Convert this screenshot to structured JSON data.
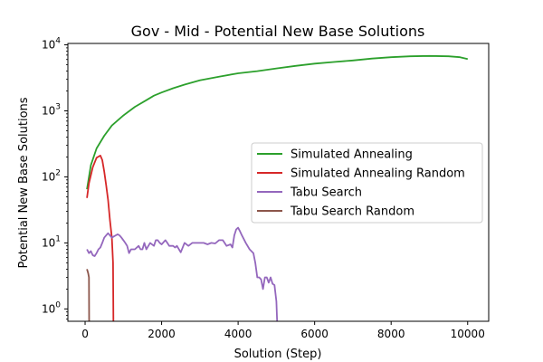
{
  "chart_data": {
    "type": "line",
    "title": "Gov - Mid - Potential New Base Solutions",
    "xlabel": "Solution (Step)",
    "ylabel": "Potential New Base Solutions",
    "xlim": [
      -450,
      10550
    ],
    "ylim": [
      0.65,
      10500
    ],
    "yscale": "log",
    "x_ticks": [
      0,
      2000,
      4000,
      6000,
      8000,
      10000
    ],
    "x_tick_labels": [
      "0",
      "2000",
      "4000",
      "6000",
      "8000",
      "10000"
    ],
    "y_ticks": [
      1,
      10,
      100,
      1000,
      10000
    ],
    "y_tick_labels": [
      [
        "10",
        "0"
      ],
      [
        "10",
        "1"
      ],
      [
        "10",
        "2"
      ],
      [
        "10",
        "3"
      ],
      [
        "10",
        "4"
      ]
    ],
    "grid": false,
    "legend_position": "center-right",
    "series": [
      {
        "name": "Simulated Annealing",
        "color": "#2ca02c",
        "x": [
          50,
          150,
          300,
          500,
          700,
          1000,
          1300,
          1600,
          1800,
          2000,
          2300,
          2600,
          3000,
          3500,
          4000,
          4500,
          5000,
          5500,
          6000,
          6500,
          7000,
          7500,
          8000,
          8500,
          9000,
          9500,
          9800,
          10000
        ],
        "y": [
          65,
          150,
          270,
          420,
          600,
          850,
          1150,
          1450,
          1700,
          1900,
          2200,
          2500,
          2900,
          3300,
          3700,
          4000,
          4400,
          4800,
          5200,
          5500,
          5800,
          6200,
          6500,
          6700,
          6800,
          6700,
          6500,
          6100
        ]
      },
      {
        "name": "Simulated Annealing Random",
        "color": "#d62728",
        "x": [
          50,
          100,
          200,
          300,
          400,
          450,
          500,
          550,
          600,
          650,
          700,
          730,
          740
        ],
        "y": [
          48,
          80,
          140,
          195,
          210,
          180,
          120,
          75,
          45,
          22,
          12,
          5,
          0.65
        ]
      },
      {
        "name": "Tabu Search",
        "color": "#9467bd",
        "x": [
          50,
          100,
          150,
          200,
          250,
          300,
          350,
          400,
          450,
          500,
          550,
          600,
          650,
          700,
          750,
          800,
          850,
          900,
          950,
          1000,
          1050,
          1100,
          1150,
          1200,
          1300,
          1400,
          1450,
          1500,
          1550,
          1600,
          1700,
          1800,
          1850,
          1900,
          1950,
          2000,
          2100,
          2150,
          2200,
          2300,
          2350,
          2400,
          2500,
          2600,
          2700,
          2800,
          2900,
          3000,
          3100,
          3200,
          3300,
          3400,
          3500,
          3550,
          3600,
          3700,
          3800,
          3850,
          3900,
          3950,
          4000,
          4050,
          4100,
          4200,
          4300,
          4400,
          4450,
          4500,
          4550,
          4600,
          4650,
          4700,
          4750,
          4800,
          4850,
          4900,
          4950,
          5000,
          5020
        ],
        "y": [
          8,
          7,
          7.5,
          6.5,
          6.3,
          7,
          8,
          8.5,
          10,
          12,
          13,
          14,
          13,
          12,
          12.5,
          13,
          13.5,
          13,
          12,
          11,
          10,
          9,
          7,
          8,
          8,
          9,
          8,
          8,
          10,
          8,
          10,
          9,
          11,
          11,
          10,
          9.5,
          11,
          10,
          9,
          9,
          8.5,
          9,
          7.2,
          10,
          9,
          10,
          10,
          10,
          10,
          9.5,
          10,
          9.8,
          11,
          11,
          11,
          9,
          9.5,
          8.5,
          13,
          16,
          17,
          15,
          13,
          10,
          8,
          7,
          5,
          3,
          3,
          2.8,
          2,
          3,
          3,
          2.5,
          3,
          2.4,
          2.3,
          1.3,
          0.65
        ]
      },
      {
        "name": "Tabu Search Random",
        "color": "#8c564b",
        "x": [
          50,
          80,
          100,
          105
        ],
        "y": [
          4,
          3.5,
          3,
          0.65
        ]
      }
    ]
  }
}
